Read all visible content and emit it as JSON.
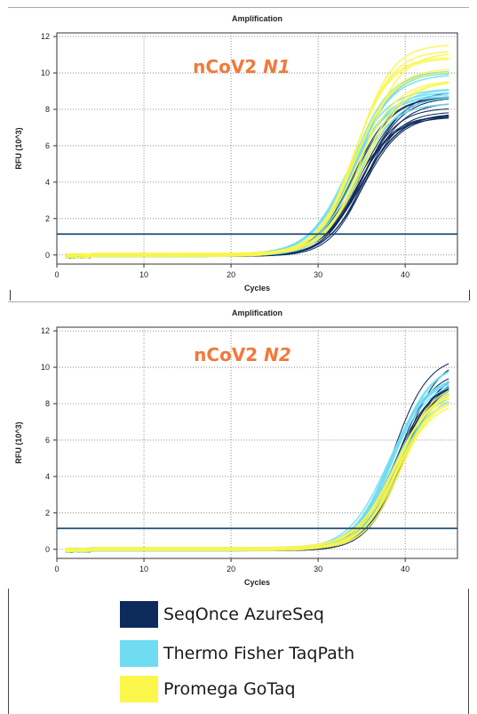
{
  "colors": {
    "azureseq": "#0c2a5c",
    "taqpath": "#6fdcf2",
    "gotaq": "#fbf64a",
    "threshold": "#1d4e72",
    "annotation": "#f2793a"
  },
  "chart_data": [
    {
      "type": "line",
      "title": "Amplification",
      "xlabel": "Cycles",
      "ylabel": "RFU (10^3)",
      "xlim": [
        0,
        46
      ],
      "ylim": [
        -0.5,
        12.2
      ],
      "xticks": [
        0,
        10,
        20,
        30,
        40
      ],
      "yticks": [
        0,
        2,
        4,
        6,
        8,
        10,
        12
      ],
      "grid": true,
      "threshold": 1.15,
      "annotation": {
        "prefix": "nCoV2 ",
        "target": "N1"
      },
      "series": [
        {
          "name": "SeqOnce AzureSeq",
          "color_key": "azureseq",
          "midpoint_range": [
            34.0,
            35.5
          ],
          "plateau_range": [
            7.6,
            9.2
          ],
          "count": 14
        },
        {
          "name": "Thermo Fisher TaqPath",
          "color_key": "taqpath",
          "midpoint_range": [
            33.3,
            34.8
          ],
          "plateau_range": [
            8.4,
            10.3
          ],
          "count": 12
        },
        {
          "name": "Promega GoTaq",
          "color_key": "gotaq",
          "midpoint_range": [
            34.0,
            35.6
          ],
          "plateau_range": [
            9.4,
            11.8
          ],
          "count": 10
        }
      ]
    },
    {
      "type": "line",
      "title": "Amplification",
      "xlabel": "Cycles",
      "ylabel": "RFU (10^3)",
      "xlim": [
        0,
        46
      ],
      "ylim": [
        -0.5,
        12.2
      ],
      "xticks": [
        0,
        10,
        20,
        30,
        40
      ],
      "yticks": [
        0,
        2,
        4,
        6,
        8,
        10,
        12
      ],
      "grid": true,
      "threshold": 1.15,
      "annotation": {
        "prefix": "nCoV2 ",
        "target": "N2"
      },
      "series": [
        {
          "name": "SeqOnce AzureSeq",
          "color_key": "azureseq",
          "midpoint_range": [
            38.5,
            39.8
          ],
          "plateau_range": [
            9.0,
            11.0
          ],
          "count": 14
        },
        {
          "name": "Thermo Fisher TaqPath",
          "color_key": "taqpath",
          "midpoint_range": [
            38.0,
            39.4
          ],
          "plateau_range": [
            8.6,
            10.4
          ],
          "count": 12
        },
        {
          "name": "Promega GoTaq",
          "color_key": "gotaq",
          "midpoint_range": [
            38.6,
            39.8
          ],
          "plateau_range": [
            8.0,
            9.2
          ],
          "count": 10
        }
      ]
    }
  ],
  "legend": {
    "items": [
      {
        "label": "SeqOnce AzureSeq",
        "color": "#0c2a5c"
      },
      {
        "label": "Thermo Fisher TaqPath",
        "color": "#6fdcf2"
      },
      {
        "label": "Promega GoTaq",
        "color": "#fbf64a"
      }
    ]
  }
}
